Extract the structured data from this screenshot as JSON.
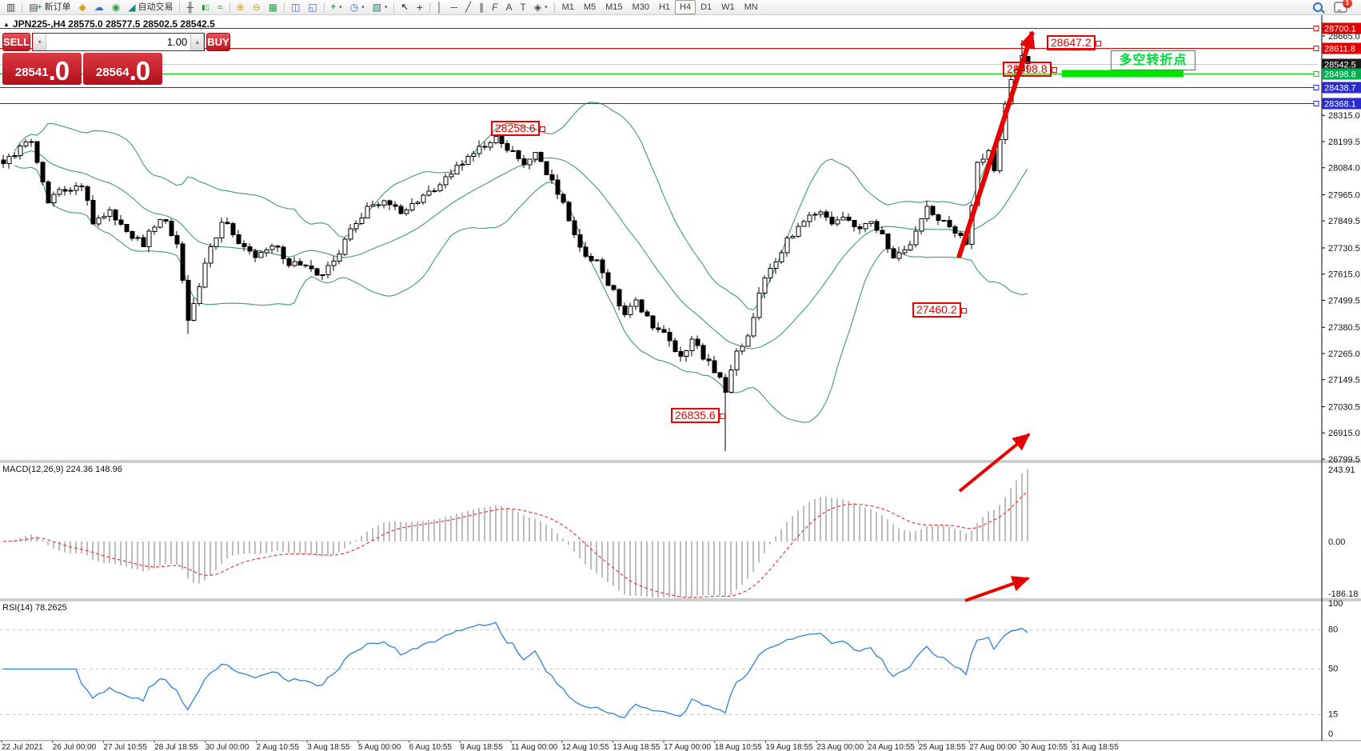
{
  "icons": {
    "market_watch": "▥",
    "new_order": "▤",
    "new_order_plus": "+",
    "history": "◆",
    "community": "☁",
    "signal": "◉",
    "autotrade": "◢",
    "chart_bars": "╫",
    "chart_candles": "▮▯",
    "chart_line": "≈",
    "zoom_in": "⊕",
    "zoom_out": "⊖",
    "tile_windows": "▦",
    "indicator_window": "◫",
    "indicator_window_2": "◱",
    "add_indicator": "+",
    "clock": "◷",
    "template": "▧",
    "cursor": "↖",
    "crosshair": "+",
    "vline": "│",
    "hline": "─",
    "trendline": "╱",
    "channel": "∥",
    "fibonacci": "F",
    "text_tool": "A",
    "label_tool": "T",
    "arrows_tool": "◈",
    "dropdown": "▾",
    "spin_up": "▴",
    "spin_down": "▾",
    "title_marker": "▲"
  },
  "toolbar": {
    "new_order_label": "新订单",
    "autotrade_label": "自动交易",
    "timeframes": [
      "M1",
      "M5",
      "M15",
      "M30",
      "H1",
      "H4",
      "D1",
      "W1",
      "MN"
    ],
    "active_timeframe": "H4",
    "notification_count": "1"
  },
  "chart_header": {
    "title": "JPN225-,H4  28575.0 28577.5 28502.5 28542.5"
  },
  "trade_panel": {
    "sell_label": "SELL",
    "buy_label": "BUY",
    "volume": "1.00",
    "sell_price_main": "28541",
    "sell_price_frac": ".0",
    "buy_price_main": "28564",
    "buy_price_frac": ".0"
  },
  "annotations": [
    {
      "text": "28647.2"
    },
    {
      "text": "28498.8"
    },
    {
      "text": "28258.6"
    },
    {
      "text": "27460.2"
    },
    {
      "text": "26835.6"
    }
  ],
  "turning_point_label": "多空转折点",
  "indicator_labels": {
    "macd": "MACD(12,26,9) 224.36 148.96",
    "rsi": "RSI(14) 78.2625"
  },
  "price_axis": {
    "ticks": [
      "28665.0",
      "28315.0",
      "28199.5",
      "28084.0",
      "27965.0",
      "27849.5",
      "27730.5",
      "27615.0",
      "27499.5",
      "27380.5",
      "27265.0",
      "27149.5",
      "27030.5",
      "26915.0",
      "26799.5"
    ]
  },
  "macd_axis": [
    "243.91",
    "0.00",
    "-186.18"
  ],
  "rsi_axis": [
    "100",
    "80",
    "50",
    "15",
    "0"
  ],
  "date_axis": [
    "22 Jul 2021",
    "26 Jul 00:00",
    "27 Jul 10:55",
    "28 Jul 18:55",
    "30 Jul 00:00",
    "2 Aug 10:55",
    "3 Aug 18:55",
    "5 Aug 00:00",
    "6 Aug 10:55",
    "9 Aug 18:55",
    "11 Aug 00:00",
    "12 Aug 10:55",
    "13 Aug 18:55",
    "17 Aug 00:00",
    "18 Aug 10:55",
    "19 Aug 18:55",
    "23 Aug 00:00",
    "24 Aug 10:55",
    "25 Aug 18:55",
    "27 Aug 00:00",
    "30 Aug 10:55",
    "31 Aug 18:55"
  ],
  "chart_data": {
    "type": "candlestick",
    "symbol": "JPN225-",
    "timeframe": "H4",
    "ohlc_header": {
      "open": 28575.0,
      "high": 28577.5,
      "low": 28502.5,
      "close": 28542.5
    },
    "bid": 28541.0,
    "ask": 28564.0,
    "price_map": {
      "pTop": 28700.1,
      "yTop": 35,
      "pBot": 26799.5,
      "yBot": 574
    },
    "candle_count": 184,
    "candle_step": 7,
    "noise": 36,
    "wick": 26,
    "waypoints": [
      [
        0,
        28120
      ],
      [
        1,
        28136
      ],
      [
        5,
        28206
      ],
      [
        8,
        27942
      ],
      [
        11,
        27995
      ],
      [
        14,
        28012
      ],
      [
        16,
        27836
      ],
      [
        19,
        27907
      ],
      [
        22,
        27801
      ],
      [
        25,
        27748
      ],
      [
        28,
        27871
      ],
      [
        31,
        27766
      ],
      [
        33,
        27395
      ],
      [
        36,
        27660
      ],
      [
        39,
        27854
      ],
      [
        42,
        27766
      ],
      [
        45,
        27695
      ],
      [
        48,
        27748
      ],
      [
        51,
        27660
      ],
      [
        54,
        27642
      ],
      [
        56,
        27607
      ],
      [
        59,
        27660
      ],
      [
        62,
        27801
      ],
      [
        65,
        27907
      ],
      [
        68,
        27942
      ],
      [
        71,
        27889
      ],
      [
        74,
        27942
      ],
      [
        76,
        27977
      ],
      [
        79,
        28030
      ],
      [
        82,
        28101
      ],
      [
        85,
        28171
      ],
      [
        88,
        28231
      ],
      [
        90,
        28171
      ],
      [
        93,
        28101
      ],
      [
        95,
        28136
      ],
      [
        97,
        28065
      ],
      [
        100,
        27924
      ],
      [
        103,
        27730
      ],
      [
        106,
        27660
      ],
      [
        108,
        27572
      ],
      [
        111,
        27448
      ],
      [
        113,
        27501
      ],
      [
        115,
        27413
      ],
      [
        118,
        27342
      ],
      [
        121,
        27254
      ],
      [
        123,
        27314
      ],
      [
        126,
        27219
      ],
      [
        128,
        27149
      ],
      [
        129,
        27096
      ],
      [
        131,
        27272
      ],
      [
        133,
        27342
      ],
      [
        135,
        27536
      ],
      [
        137,
        27642
      ],
      [
        140,
        27766
      ],
      [
        142,
        27818
      ],
      [
        144,
        27864
      ],
      [
        146,
        27889
      ],
      [
        148,
        27836
      ],
      [
        150,
        27864
      ],
      [
        152,
        27811
      ],
      [
        155,
        27847
      ],
      [
        157,
        27783
      ],
      [
        159,
        27695
      ],
      [
        161,
        27730
      ],
      [
        163,
        27794
      ],
      [
        165,
        27914
      ],
      [
        167,
        27864
      ],
      [
        170,
        27783
      ],
      [
        172,
        27759
      ],
      [
        174,
        28101
      ],
      [
        176,
        28147
      ],
      [
        177,
        28076
      ],
      [
        179,
        28354
      ],
      [
        180,
        28488
      ],
      [
        182,
        28569
      ],
      [
        183,
        28543
      ]
    ],
    "overrides": {
      "33": {
        "low": 27352.0
      },
      "129": {
        "low": 26835.6
      },
      "182": {
        "high": 28647.2
      },
      "183": {
        "open": 28575.0,
        "high": 28577.5,
        "low": 28502.5,
        "close": 28542.5
      }
    },
    "levels": [
      {
        "value": 28700.1,
        "label": "28700.1",
        "line": "#e00000",
        "badge": "#e00000"
      },
      {
        "value": 28611.8,
        "label": "28611.8",
        "line": "#e00000",
        "badge": "#e00000"
      },
      {
        "value": 28542.5,
        "label": "28542.5",
        "line": "#c8c8c8",
        "badge": "#1a1a1a",
        "current": true
      },
      {
        "value": 28498.8,
        "label": "28498.8",
        "line": "#00c800",
        "badge": "#00b050",
        "bar": [
          1328,
          1480
        ],
        "bar_color": "#00e400"
      },
      {
        "value": 28438.7,
        "label": "28438.7",
        "line": "#2828c8",
        "badge": "#2a2ad2"
      },
      {
        "value": 28368.1,
        "label": "28368.1",
        "line": "#2828c8",
        "badge": "#2a2ad2"
      }
    ],
    "bollinger": {
      "period": 20,
      "deviation": 2,
      "color": "#3d9e63"
    },
    "macd": {
      "fast": 12,
      "slow": 26,
      "signal": 9,
      "value": 224.36,
      "signal_value": 148.96,
      "hist_color": "#bdbdbd",
      "signal_color": "#e53935",
      "max": 243.91,
      "min": -186.18
    },
    "rsi": {
      "period": 14,
      "value": 78.2625,
      "color": "#2f80d8",
      "levels_dashed": [
        80,
        50,
        15
      ]
    }
  }
}
